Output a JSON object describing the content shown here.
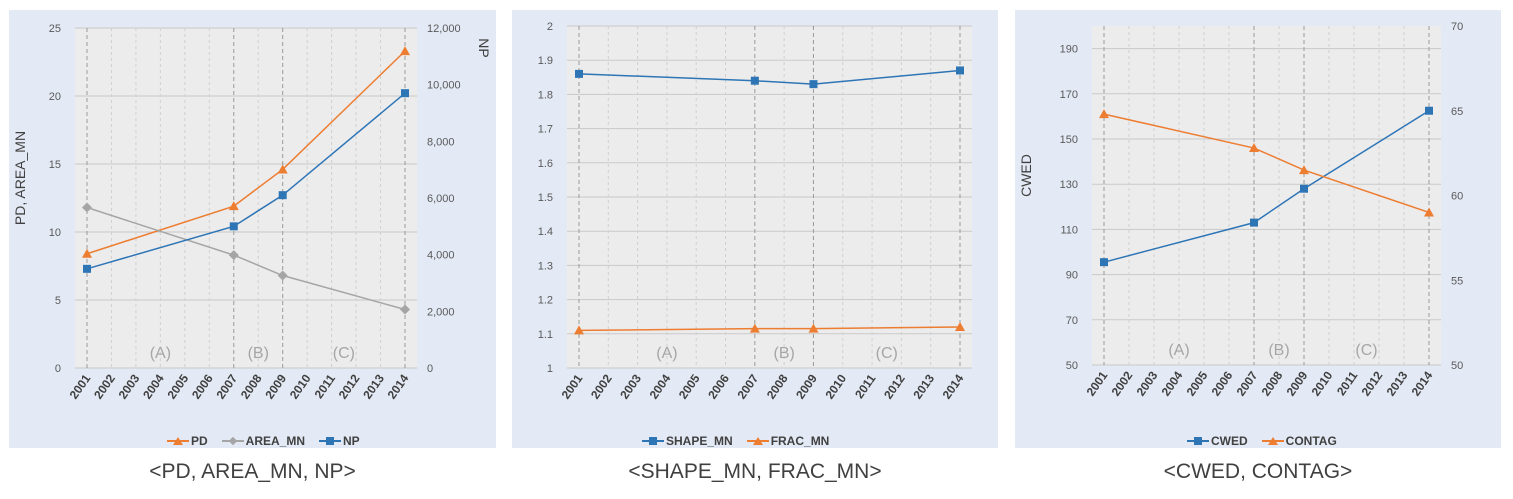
{
  "chart_data": [
    {
      "type": "line",
      "caption": "<PD, AREA_MN, NP>",
      "x": [
        "2001",
        "2002",
        "2003",
        "2004",
        "2005",
        "2006",
        "2007",
        "2008",
        "2009",
        "2010",
        "2011",
        "2012",
        "2013",
        "2014"
      ],
      "left_axis": {
        "label": "PD, AREA_MN",
        "min": 0,
        "max": 25,
        "ticks": [
          "0",
          "5",
          "10",
          "15",
          "20",
          "25"
        ],
        "tick_values": [
          0,
          5,
          10,
          15,
          20,
          25
        ]
      },
      "right_axis": {
        "label": "NP",
        "min": 0,
        "max": 12000,
        "ticks": [
          "0",
          "2,000",
          "4,000",
          "6,000",
          "8,000",
          "10,000",
          "12,000"
        ],
        "tick_values": [
          0,
          2000,
          4000,
          6000,
          8000,
          10000,
          12000
        ]
      },
      "periods": [
        {
          "label": "(A)",
          "from": "2001",
          "to": "2007"
        },
        {
          "label": "(B)",
          "from": "2007",
          "to": "2009"
        },
        {
          "label": "(C)",
          "from": "2009",
          "to": "2014"
        }
      ],
      "series": [
        {
          "name": "PD",
          "axis": "left",
          "color": "#ed7d31",
          "marker": "triangle",
          "points": [
            {
              "x": "2001",
              "y": 8.4
            },
            {
              "x": "2007",
              "y": 11.9
            },
            {
              "x": "2009",
              "y": 14.6
            },
            {
              "x": "2014",
              "y": 23.3
            }
          ]
        },
        {
          "name": "AREA_MN",
          "axis": "left",
          "color": "#a5a5a5",
          "marker": "diamond",
          "points": [
            {
              "x": "2001",
              "y": 11.8
            },
            {
              "x": "2007",
              "y": 8.3
            },
            {
              "x": "2009",
              "y": 6.8
            },
            {
              "x": "2014",
              "y": 4.3
            }
          ]
        },
        {
          "name": "NP",
          "axis": "right",
          "color": "#2e75b6",
          "marker": "square",
          "points": [
            {
              "x": "2001",
              "y": 3500
            },
            {
              "x": "2007",
              "y": 5000
            },
            {
              "x": "2009",
              "y": 6100
            },
            {
              "x": "2014",
              "y": 9700
            }
          ]
        }
      ]
    },
    {
      "type": "line",
      "caption": "<SHAPE_MN, FRAC_MN>",
      "x": [
        "2001",
        "2002",
        "2003",
        "2004",
        "2005",
        "2006",
        "2007",
        "2008",
        "2009",
        "2010",
        "2011",
        "2012",
        "2013",
        "2014"
      ],
      "left_axis": {
        "label": "",
        "min": 1,
        "max": 2,
        "ticks": [
          "1",
          "1.1",
          "1.2",
          "1.3",
          "1.4",
          "1.5",
          "1.6",
          "1.7",
          "1.8",
          "1.9",
          "2"
        ],
        "tick_values": [
          1,
          1.1,
          1.2,
          1.3,
          1.4,
          1.5,
          1.6,
          1.7,
          1.8,
          1.9,
          2
        ]
      },
      "periods": [
        {
          "label": "(A)",
          "from": "2001",
          "to": "2007"
        },
        {
          "label": "(B)",
          "from": "2007",
          "to": "2009"
        },
        {
          "label": "(C)",
          "from": "2009",
          "to": "2014"
        }
      ],
      "series": [
        {
          "name": "SHAPE_MN",
          "axis": "left",
          "color": "#2e75b6",
          "marker": "square",
          "points": [
            {
              "x": "2001",
              "y": 1.86
            },
            {
              "x": "2007",
              "y": 1.84
            },
            {
              "x": "2009",
              "y": 1.83
            },
            {
              "x": "2014",
              "y": 1.87
            }
          ]
        },
        {
          "name": "FRAC_MN",
          "axis": "left",
          "color": "#ed7d31",
          "marker": "triangle",
          "points": [
            {
              "x": "2001",
              "y": 1.11
            },
            {
              "x": "2007",
              "y": 1.115
            },
            {
              "x": "2009",
              "y": 1.115
            },
            {
              "x": "2014",
              "y": 1.12
            }
          ]
        }
      ]
    },
    {
      "type": "line",
      "caption": "<CWED, CONTAG>",
      "x": [
        "2001",
        "2002",
        "2003",
        "2004",
        "2005",
        "2006",
        "2007",
        "2008",
        "2009",
        "2010",
        "2011",
        "2012",
        "2013",
        "2014"
      ],
      "left_axis": {
        "label": "CWED",
        "min": 50,
        "max": 200,
        "ticks": [
          "50",
          "70",
          "90",
          "110",
          "130",
          "150",
          "170",
          "190"
        ],
        "tick_values": [
          50,
          70,
          90,
          110,
          130,
          150,
          170,
          190
        ]
      },
      "right_axis": {
        "label": "CONTAG",
        "min": 50,
        "max": 70,
        "ticks": [
          "50",
          "55",
          "60",
          "65",
          "70"
        ],
        "tick_values": [
          50,
          55,
          60,
          65,
          70
        ]
      },
      "periods": [
        {
          "label": "(A)",
          "from": "2001",
          "to": "2007"
        },
        {
          "label": "(B)",
          "from": "2007",
          "to": "2009"
        },
        {
          "label": "(C)",
          "from": "2009",
          "to": "2014"
        }
      ],
      "series": [
        {
          "name": "CWED",
          "axis": "left",
          "color": "#2e75b6",
          "marker": "square",
          "points": [
            {
              "x": "2001",
              "y": 95.5
            },
            {
              "x": "2007",
              "y": 113
            },
            {
              "x": "2009",
              "y": 128
            },
            {
              "x": "2014",
              "y": 162.5
            }
          ]
        },
        {
          "name": "CONTAG",
          "axis": "right",
          "color": "#ed7d31",
          "marker": "triangle",
          "points": [
            {
              "x": "2001",
              "y": 64.8
            },
            {
              "x": "2007",
              "y": 62.8
            },
            {
              "x": "2009",
              "y": 61.5
            },
            {
              "x": "2014",
              "y": 59
            }
          ]
        }
      ]
    }
  ]
}
